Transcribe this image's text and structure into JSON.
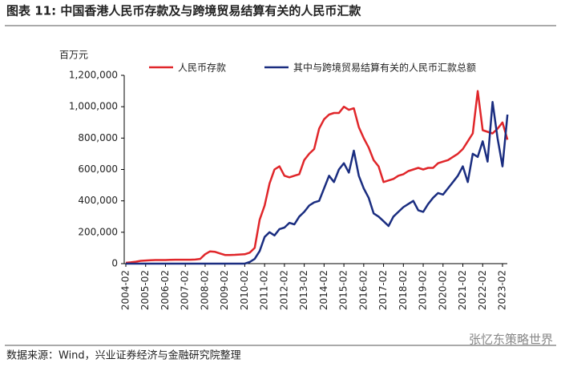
{
  "title": "图表 11:  中国香港人民币存款及与跨境贸易结算有关的人民币汇款",
  "source": "数据来源：Wind，兴业证券经济与金融研究院整理",
  "watermark": "张忆东策略世界",
  "chart_data": {
    "type": "line",
    "y_unit": "百万元",
    "categories": [
      "2004-02",
      null,
      null,
      null,
      "2005-02",
      null,
      null,
      null,
      "2006-02",
      null,
      null,
      null,
      "2007-02",
      null,
      null,
      null,
      "2008-02",
      null,
      null,
      null,
      "2009-02",
      null,
      null,
      null,
      "2010-02",
      null,
      null,
      null,
      "2011-02",
      null,
      null,
      null,
      "2012-02",
      null,
      null,
      null,
      "2013-02",
      null,
      null,
      null,
      "2014-02",
      null,
      null,
      null,
      "2015-02",
      null,
      null,
      null,
      "2016-02",
      null,
      null,
      null,
      "2017-02",
      null,
      null,
      null,
      "2018-02",
      null,
      null,
      null,
      "2019-02",
      null,
      null,
      null,
      "2020-02",
      null,
      null,
      null,
      "2021-02",
      null,
      null,
      null,
      "2022-02",
      null,
      null,
      null,
      "2023-02",
      null
    ],
    "series": [
      {
        "name": "人民币存款",
        "color": "#e0262a",
        "values": [
          5000,
          8000,
          12000,
          18000,
          20000,
          22000,
          23000,
          23000,
          23000,
          24000,
          25000,
          25000,
          25000,
          25000,
          26000,
          30000,
          60000,
          78000,
          75000,
          65000,
          55000,
          55000,
          56000,
          58000,
          60000,
          70000,
          100000,
          280000,
          370000,
          510000,
          600000,
          620000,
          560000,
          550000,
          560000,
          570000,
          660000,
          700000,
          730000,
          860000,
          920000,
          950000,
          960000,
          960000,
          1000000,
          980000,
          990000,
          870000,
          800000,
          740000,
          660000,
          620000,
          520000,
          530000,
          540000,
          560000,
          570000,
          590000,
          600000,
          610000,
          600000,
          610000,
          610000,
          640000,
          650000,
          660000,
          680000,
          700000,
          730000,
          780000,
          830000,
          1100000,
          850000,
          840000,
          830000,
          860000,
          900000,
          790000
        ]
      },
      {
        "name": "其中与跨境贸易结算有关的人民币汇款总额",
        "color": "#1a2d80",
        "values": [
          0,
          0,
          0,
          0,
          0,
          0,
          0,
          0,
          0,
          0,
          0,
          0,
          0,
          0,
          0,
          0,
          0,
          0,
          0,
          0,
          0,
          0,
          0,
          0,
          0,
          10000,
          30000,
          80000,
          170000,
          200000,
          180000,
          220000,
          230000,
          260000,
          250000,
          300000,
          330000,
          370000,
          390000,
          400000,
          480000,
          560000,
          520000,
          600000,
          640000,
          580000,
          720000,
          560000,
          480000,
          420000,
          320000,
          300000,
          270000,
          240000,
          300000,
          330000,
          360000,
          380000,
          400000,
          340000,
          330000,
          380000,
          420000,
          450000,
          440000,
          480000,
          520000,
          560000,
          620000,
          520000,
          700000,
          680000,
          780000,
          650000,
          1030000,
          800000,
          620000,
          950000
        ]
      }
    ],
    "ylim": [
      0,
      1200000
    ],
    "yticks": [
      0,
      {
        "value": 200000,
        "label": "200,000"
      },
      {
        "value": 400000,
        "label": "400,000"
      },
      {
        "value": 600000,
        "label": "600,000"
      },
      {
        "value": 800000,
        "label": "800,000"
      },
      {
        "value": 1000000,
        "label": "1,000,000"
      },
      {
        "value": 1200000,
        "label": "1,200,000"
      }
    ],
    "grid": false
  }
}
